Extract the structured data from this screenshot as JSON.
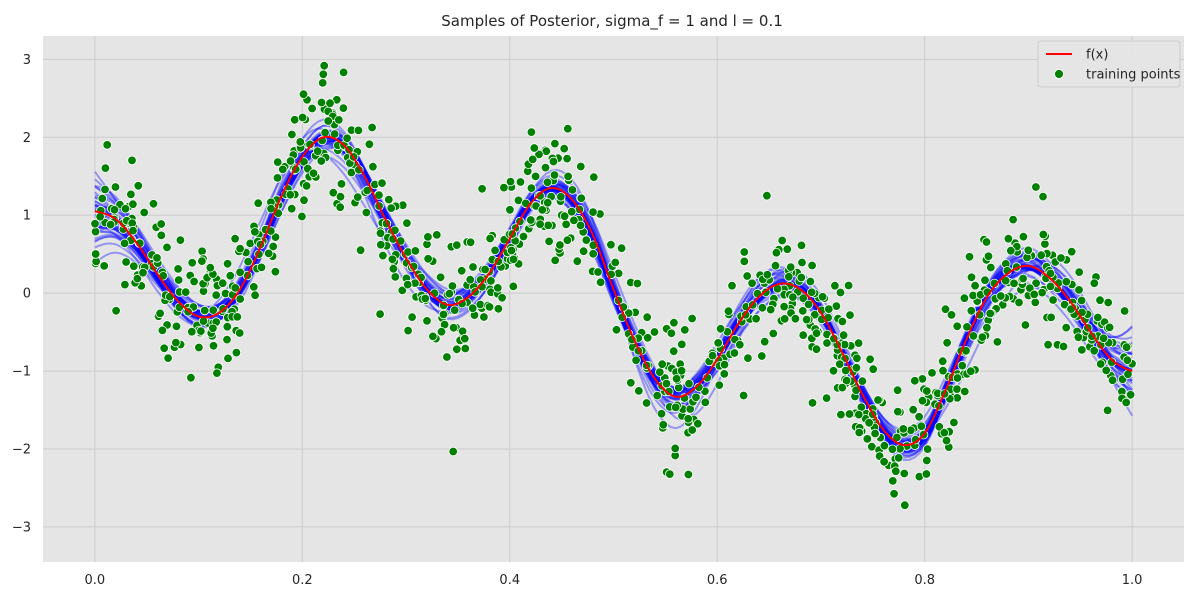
{
  "chart_data": {
    "type": "line",
    "title": "Samples of Posterior, sigma_f = 1 and l = 0.1",
    "xlabel": "",
    "ylabel": "",
    "xlim": [
      -0.05,
      1.05
    ],
    "ylim": [
      -3.45,
      3.3
    ],
    "x_ticks": [
      "0.0",
      "0.2",
      "0.4",
      "0.6",
      "0.8",
      "1.0"
    ],
    "x_tick_values": [
      0.0,
      0.2,
      0.4,
      0.6,
      0.8,
      1.0
    ],
    "y_ticks": [
      "−3",
      "−2",
      "−1",
      "0",
      "1",
      "2",
      "3"
    ],
    "y_tick_values": [
      -3,
      -2,
      -1,
      0,
      1,
      2,
      3
    ],
    "grid": true,
    "background": "#e5e5e5",
    "legend_placement": "top-right",
    "legend": [
      {
        "label": "f(x)",
        "kind": "line",
        "color": "#ff0000"
      },
      {
        "label": "training points",
        "kind": "marker",
        "color": "#008000"
      }
    ],
    "series": [
      {
        "name": "f(x)",
        "kind": "line",
        "color": "#ff0000",
        "x": [
          0.0,
          0.02,
          0.04,
          0.06,
          0.08,
          0.1,
          0.12,
          0.14,
          0.16,
          0.18,
          0.2,
          0.22,
          0.24,
          0.26,
          0.28,
          0.3,
          0.32,
          0.34,
          0.36,
          0.38,
          0.4,
          0.42,
          0.44,
          0.46,
          0.48,
          0.5,
          0.52,
          0.54,
          0.56,
          0.58,
          0.6,
          0.62,
          0.64,
          0.66,
          0.68,
          0.7,
          0.72,
          0.74,
          0.76,
          0.78,
          0.8,
          0.82,
          0.84,
          0.86,
          0.88,
          0.9,
          0.92,
          0.94,
          0.96,
          0.98,
          1.0
        ],
        "y": [
          1.05,
          0.95,
          0.65,
          0.25,
          -0.1,
          -0.3,
          -0.25,
          0.05,
          0.6,
          1.25,
          1.75,
          2.0,
          1.9,
          1.5,
          0.95,
          0.45,
          0.05,
          -0.15,
          -0.05,
          0.25,
          0.7,
          1.15,
          1.35,
          1.2,
          0.75,
          0.05,
          -0.6,
          -1.1,
          -1.33,
          -1.2,
          -0.85,
          -0.4,
          -0.05,
          0.12,
          0.05,
          -0.25,
          -0.75,
          -1.3,
          -1.75,
          -1.95,
          -1.8,
          -1.25,
          -0.6,
          -0.05,
          0.25,
          0.35,
          0.2,
          -0.1,
          -0.5,
          -0.85,
          -1.0
        ]
      }
    ],
    "posterior_samples": {
      "color": "#0000ff",
      "count": 40,
      "spread": 0.12
    },
    "training_points": {
      "name": "training points",
      "kind": "scatter",
      "color": "#008000",
      "count": 1000,
      "noise_sd": 0.4
    }
  }
}
